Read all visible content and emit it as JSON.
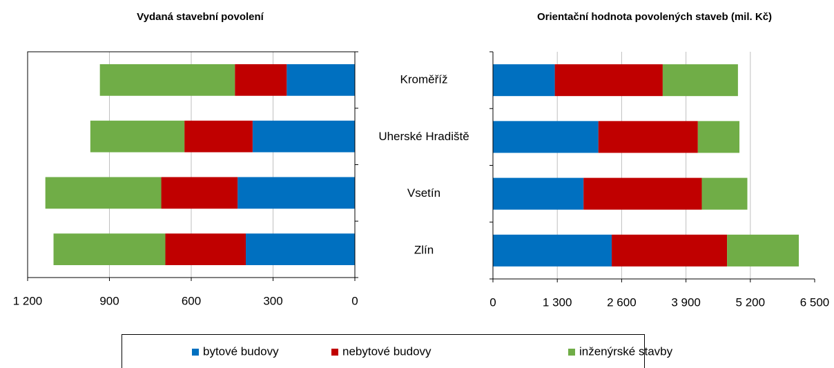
{
  "chart_data": [
    {
      "type": "bar",
      "orientation": "horizontal",
      "stacked": true,
      "title": "Vydaná stavební povolení",
      "categories": [
        "Kroměříž",
        "Uherské Hradiště",
        "Vsetín",
        "Zlín"
      ],
      "series": [
        {
          "name": "bytové budovy",
          "color": "#0070c0",
          "values": [
            250,
            375,
            430,
            400
          ]
        },
        {
          "name": "nebytové budovy",
          "color": "#c00000",
          "values": [
            190,
            250,
            280,
            295
          ]
        },
        {
          "name": "inženýrské stavby",
          "color": "#70ad47",
          "values": [
            495,
            345,
            425,
            410
          ]
        }
      ],
      "xlim": [
        1200,
        0
      ],
      "xticks": [
        {
          "value": 1200,
          "label": "1 200"
        },
        900,
        600,
        300,
        0
      ],
      "grid": true,
      "frame": true
    },
    {
      "type": "bar",
      "orientation": "horizontal",
      "stacked": true,
      "title": "Orientační hodnota povolených staveb (mil. Kč)",
      "series": [
        {
          "color": "#0070c0",
          "values": [
            1250,
            2130,
            1830,
            2400
          ]
        },
        {
          "color": "#c00000",
          "values": [
            2180,
            2010,
            2390,
            2330
          ]
        },
        {
          "color": "#70ad47",
          "values": [
            1520,
            840,
            920,
            1450
          ]
        }
      ],
      "xlim": [
        0,
        6500
      ],
      "xticks": [
        0,
        {
          "value": 1300,
          "label": "1 300"
        },
        {
          "value": 2600,
          "label": "2 600"
        },
        {
          "value": 3900,
          "label": "3 900"
        },
        {
          "value": 5200,
          "label": "5 200"
        },
        {
          "value": 6500,
          "label": "6 500"
        }
      ],
      "grid": true,
      "frame": false
    }
  ]
}
